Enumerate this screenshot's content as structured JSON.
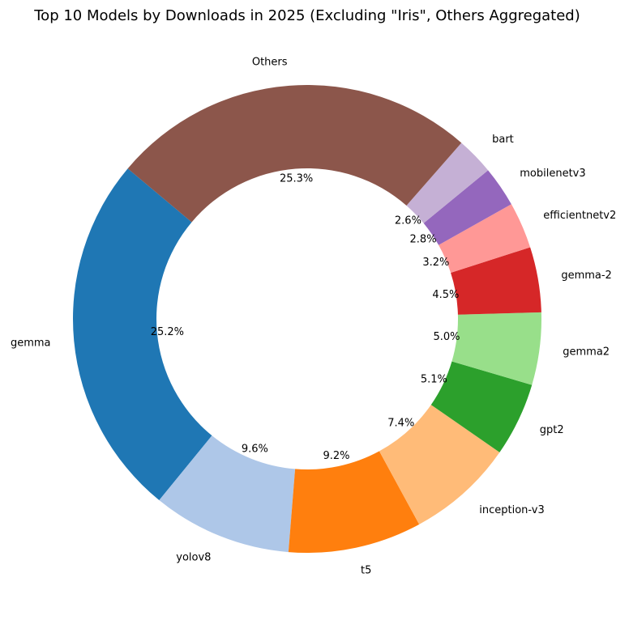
{
  "chart_data": {
    "type": "pie",
    "donut": true,
    "title": "Top 10 Models by Downloads in 2025 (Excluding \"Iris\", Others Aggregated)",
    "start_angle_deg": 140,
    "direction": "counterclockwise",
    "slices": [
      {
        "label": "gemma",
        "value": 25.2,
        "pct_label": "25.2%",
        "color": "#1f77b4"
      },
      {
        "label": "yolov8",
        "value": 9.6,
        "pct_label": "9.6%",
        "color": "#aec7e8"
      },
      {
        "label": "t5",
        "value": 9.2,
        "pct_label": "9.2%",
        "color": "#ff7f0e"
      },
      {
        "label": "inception-v3",
        "value": 7.4,
        "pct_label": "7.4%",
        "color": "#ffbb78"
      },
      {
        "label": "gpt2",
        "value": 5.1,
        "pct_label": "5.1%",
        "color": "#2ca02c"
      },
      {
        "label": "gemma2",
        "value": 5.0,
        "pct_label": "5.0%",
        "color": "#98df8a"
      },
      {
        "label": "gemma-2",
        "value": 4.5,
        "pct_label": "4.5%",
        "color": "#d62728"
      },
      {
        "label": "efficientnetv2",
        "value": 3.2,
        "pct_label": "3.2%",
        "color": "#ff9896"
      },
      {
        "label": "mobilenetv3",
        "value": 2.8,
        "pct_label": "2.8%",
        "color": "#9467bd"
      },
      {
        "label": "bart",
        "value": 2.6,
        "pct_label": "2.6%",
        "color": "#c5b0d5"
      },
      {
        "label": "Others",
        "value": 25.3,
        "pct_label": "25.3%",
        "color": "#8c564b"
      }
    ]
  }
}
